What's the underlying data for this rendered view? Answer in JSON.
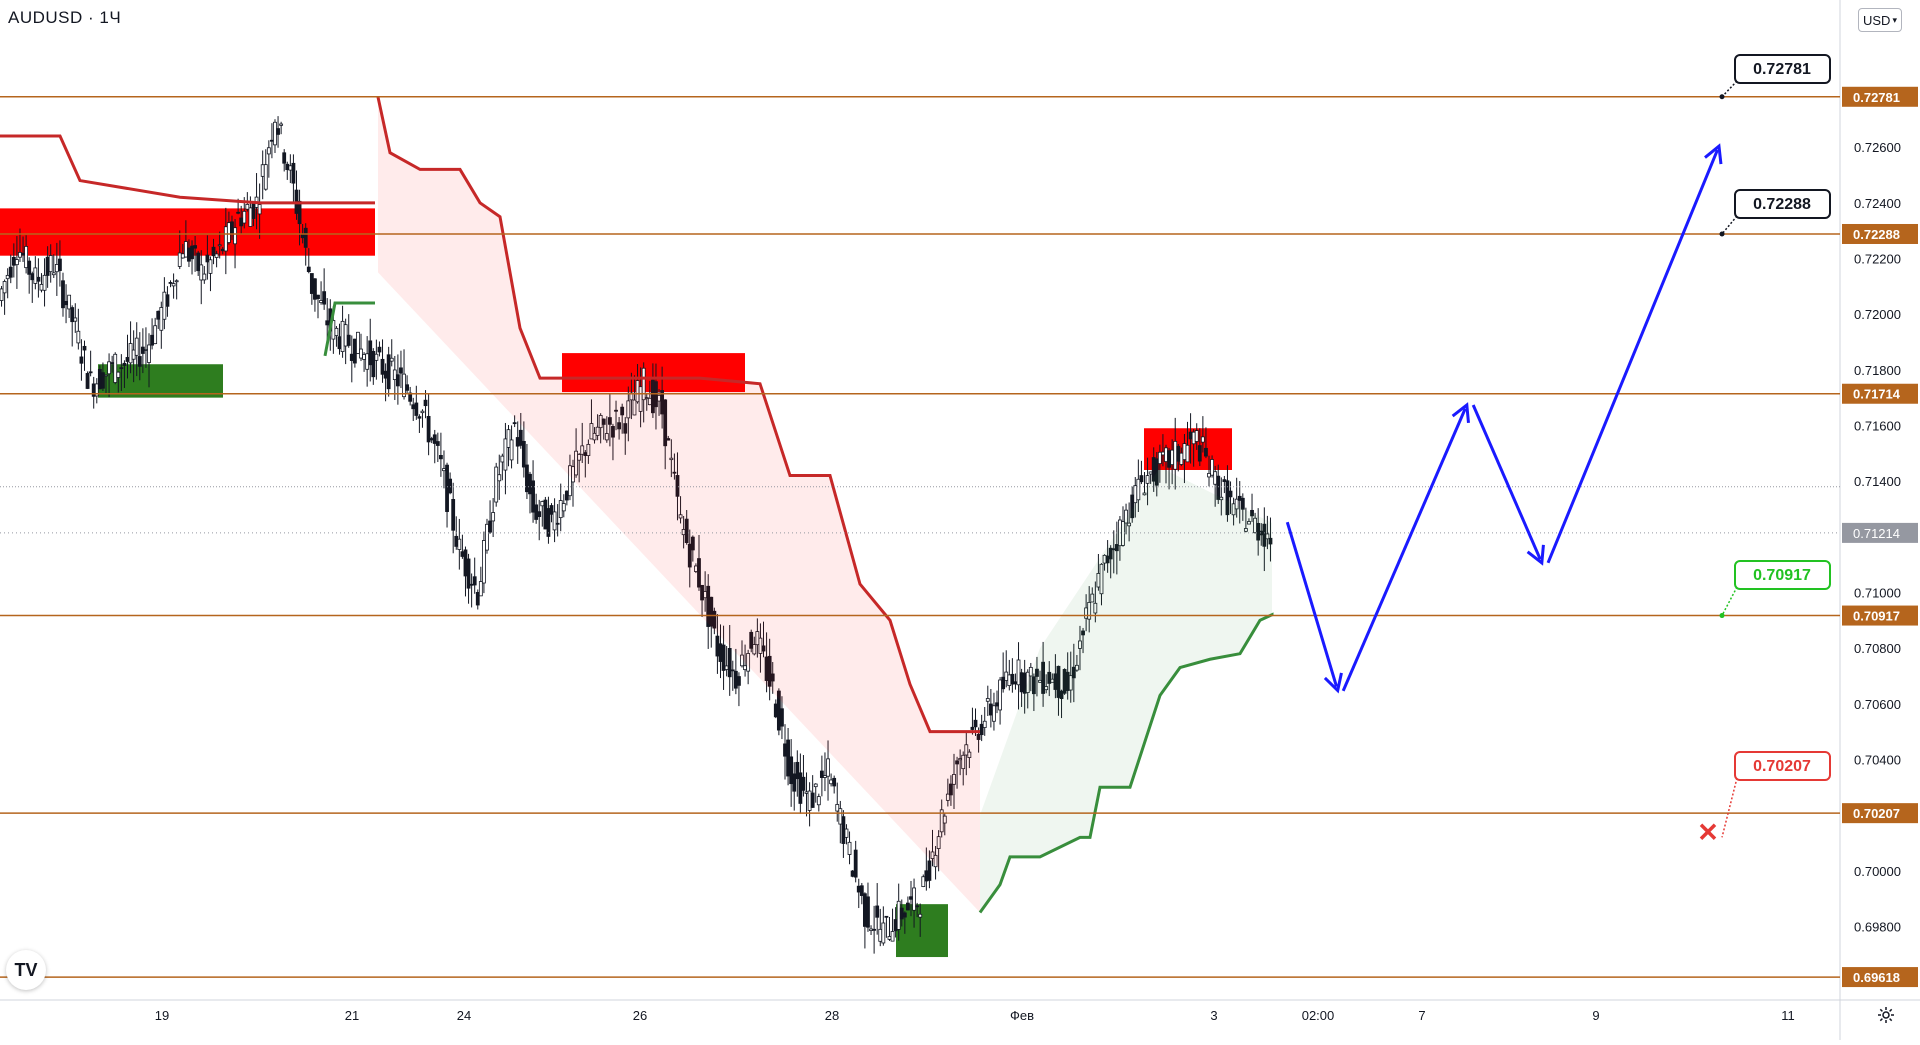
{
  "header": {
    "symbol": "AUDUSD · 1Ч",
    "currency_button": "USD"
  },
  "colors": {
    "level_line": "#b5651d",
    "level_tag_bg": "#b5651d",
    "current_tag_bg": "#9598a1",
    "up_arrow": "#1a1aff",
    "resist_fill": "#ff0000",
    "support_fill": "#2e7d1f",
    "trend_down": "#c62828",
    "trend_up": "#388e3c",
    "label_green": "#22c222",
    "label_red": "#e53935"
  },
  "chart_data": {
    "type": "candlestick",
    "symbol": "AUDUSD",
    "timeframe": "1Ч",
    "y_ticks": [
      "0.72600",
      "0.72400",
      "0.72200",
      "0.72000",
      "0.71800",
      "0.71600",
      "0.71400",
      "0.71000",
      "0.70800",
      "0.70600",
      "0.70400",
      "0.70000",
      "0.69800"
    ],
    "x_ticks": [
      "19",
      "21",
      "24",
      "26",
      "28",
      "Фев",
      "3",
      "02:00",
      "7",
      "9",
      "11"
    ],
    "ylim": [
      0.6955,
      0.731
    ],
    "levels": [
      {
        "price": 0.72781,
        "label": "0.72781"
      },
      {
        "price": 0.72288,
        "label": "0.72288"
      },
      {
        "price": 0.71714,
        "label": "0.71714"
      },
      {
        "price": 0.70917,
        "label": "0.70917"
      },
      {
        "price": 0.70207,
        "label": "0.70207"
      },
      {
        "price": 0.69618,
        "label": "0.69618"
      }
    ],
    "current_price": {
      "price": 0.71214,
      "label": "0.71214"
    },
    "dotted_price": 0.7138,
    "callouts": [
      {
        "label": "0.72781",
        "style": "black"
      },
      {
        "label": "0.72288",
        "style": "black"
      },
      {
        "label": "0.70917",
        "style": "green"
      },
      {
        "label": "0.70207",
        "style": "red"
      }
    ],
    "zones": [
      {
        "type": "resistance",
        "from": 0.7238,
        "to": 0.7221
      },
      {
        "type": "support",
        "from": 0.7182,
        "to": 0.717
      },
      {
        "type": "resistance",
        "from": 0.7186,
        "to": 0.7172
      },
      {
        "type": "resistance",
        "from": 0.7159,
        "to": 0.7144
      },
      {
        "type": "support",
        "from": 0.6988,
        "to": 0.6969
      }
    ],
    "close_path": [
      0.7205,
      0.7225,
      0.7212,
      0.7218,
      0.7198,
      0.7175,
      0.718,
      0.7183,
      0.7188,
      0.7203,
      0.7225,
      0.7215,
      0.7222,
      0.7235,
      0.724,
      0.7272,
      0.7245,
      0.721,
      0.7195,
      0.719,
      0.7185,
      0.718,
      0.7175,
      0.7165,
      0.7145,
      0.7115,
      0.71,
      0.714,
      0.716,
      0.713,
      0.7125,
      0.714,
      0.7155,
      0.716,
      0.7163,
      0.7175,
      0.7165,
      0.7125,
      0.7105,
      0.708,
      0.707,
      0.7085,
      0.7065,
      0.7035,
      0.7025,
      0.7035,
      0.701,
      0.6985,
      0.6978,
      0.6985,
      0.699,
      0.7015,
      0.704,
      0.705,
      0.706,
      0.7072,
      0.7068,
      0.707,
      0.7065,
      0.709,
      0.711,
      0.7125,
      0.714,
      0.7145,
      0.715,
      0.7155,
      0.714,
      0.713,
      0.7125,
      0.712
    ],
    "projection": [
      {
        "t": 0,
        "price": 0.7128
      },
      {
        "t": 1,
        "price": 0.7062
      },
      {
        "t": 2,
        "price": 0.717
      },
      {
        "t": 3,
        "price": 0.7108
      },
      {
        "t": 4,
        "price": 0.7263
      }
    ]
  }
}
